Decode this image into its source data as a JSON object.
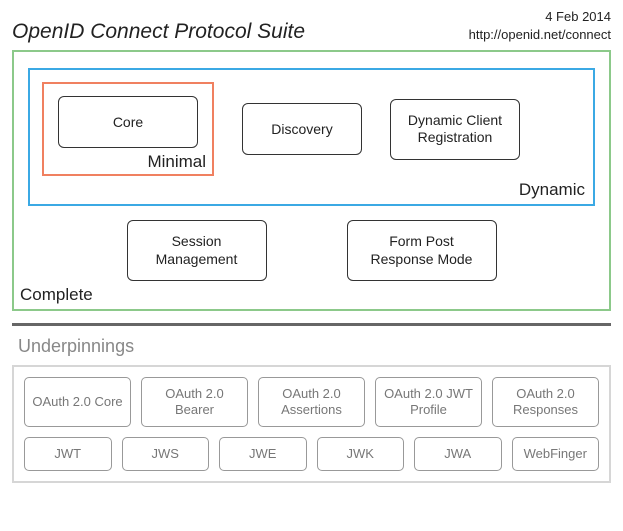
{
  "header": {
    "title": "OpenID Connect Protocol Suite",
    "date": "4 Feb 2014",
    "url": "http://openid.net/connect"
  },
  "complete": {
    "label": "Complete",
    "border_color": "#8cc98a"
  },
  "dynamic": {
    "label": "Dynamic",
    "border_color": "#3ba9e4",
    "discovery": "Discovery",
    "dynreg": "Dynamic Client Registration"
  },
  "minimal": {
    "label": "Minimal",
    "border_color": "#f08060",
    "core": "Core"
  },
  "lower": {
    "session": "Session Management",
    "formpost": "Form Post Response Mode"
  },
  "underpinnings": {
    "title": "Underpinnings",
    "row1": {
      "c0": "OAuth 2.0 Core",
      "c1": "OAuth 2.0 Bearer",
      "c2": "OAuth 2.0 Assertions",
      "c3": "OAuth 2.0 JWT Profile",
      "c4": "OAuth 2.0 Responses"
    },
    "row2": {
      "c0": "JWT",
      "c1": "JWS",
      "c2": "JWE",
      "c3": "JWK",
      "c4": "JWA",
      "c5": "WebFinger"
    }
  },
  "style": {
    "cell_border": "#333333",
    "under_cell_border": "#999999",
    "under_text": "#777777",
    "hr_color": "#666666",
    "bg": "#ffffff"
  }
}
